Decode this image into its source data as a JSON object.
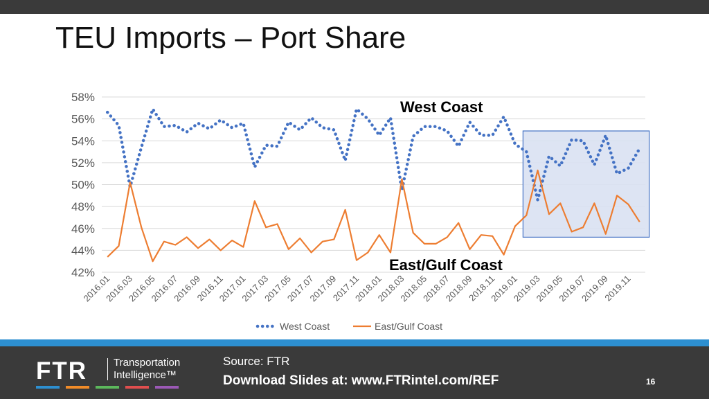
{
  "slide": {
    "title": "TEU Imports – Port Share"
  },
  "chart_data": {
    "type": "line",
    "categories": [
      "2016.01",
      "2016.02",
      "2016.03",
      "2016.04",
      "2016.05",
      "2016.06",
      "2016.07",
      "2016.08",
      "2016.09",
      "2016.10",
      "2016.11",
      "2016.12",
      "2017.01",
      "2017.02",
      "2017.03",
      "2017.04",
      "2017.05",
      "2017.06",
      "2017.07",
      "2017.08",
      "2017.09",
      "2017.10",
      "2017.11",
      "2017.12",
      "2018.01",
      "2018.02",
      "2018.03",
      "2018.04",
      "2018.05",
      "2018.06",
      "2018.07",
      "2018.08",
      "2018.09",
      "2018.10",
      "2018.11",
      "2018.12",
      "2019.01",
      "2019.02",
      "2019.03",
      "2019.04",
      "2019.05",
      "2019.06",
      "2019.07",
      "2019.08",
      "2019.09",
      "2019.10",
      "2019.11",
      "2019.12"
    ],
    "x_tick_labels": [
      "2016.01",
      "2016.03",
      "2016.05",
      "2016.07",
      "2016.09",
      "2016.11",
      "2017.01",
      "2017.03",
      "2017.05",
      "2017.07",
      "2017.09",
      "2017.11",
      "2018.01",
      "2018.03",
      "2018.05",
      "2018.07",
      "2018.09",
      "2018.11",
      "2019.01",
      "2019.03",
      "2019.05",
      "2019.07",
      "2019.09",
      "2019.11"
    ],
    "y_ticks": [
      42,
      44,
      46,
      48,
      50,
      52,
      54,
      56,
      58
    ],
    "y_tick_labels": [
      "42%",
      "44%",
      "46%",
      "48%",
      "50%",
      "52%",
      "54%",
      "56%",
      "58%"
    ],
    "ylim": [
      42,
      58
    ],
    "grid": true,
    "series": [
      {
        "name": "West Coast",
        "color": "#4472C4",
        "style": "dotted",
        "values": [
          56.6,
          55.4,
          49.8,
          53.4,
          56.9,
          55.3,
          55.4,
          54.8,
          55.6,
          55.1,
          55.9,
          55.2,
          55.6,
          51.6,
          53.6,
          53.5,
          55.7,
          55.0,
          56.1,
          55.2,
          55.0,
          52.2,
          56.9,
          56.0,
          54.5,
          56.1,
          49.5,
          54.4,
          55.3,
          55.3,
          54.9,
          53.5,
          55.7,
          54.5,
          54.5,
          56.2,
          53.7,
          53.0,
          48.6,
          52.6,
          51.7,
          54.1,
          54.0,
          51.8,
          54.5,
          51.0,
          51.5,
          53.3
        ]
      },
      {
        "name": "East/Gulf Coast",
        "color": "#ED7D31",
        "style": "solid",
        "values": [
          43.4,
          44.4,
          50.2,
          46.1,
          43.0,
          44.8,
          44.5,
          45.2,
          44.2,
          45.0,
          44.0,
          44.9,
          44.3,
          48.5,
          46.1,
          46.4,
          44.1,
          45.1,
          43.8,
          44.8,
          45.0,
          47.7,
          43.1,
          43.8,
          45.4,
          43.8,
          50.5,
          45.6,
          44.6,
          44.6,
          45.2,
          46.5,
          44.1,
          45.4,
          45.3,
          43.6,
          46.2,
          47.2,
          51.3,
          47.3,
          48.3,
          45.7,
          46.1,
          48.3,
          45.5,
          49.0,
          48.2,
          46.6
        ]
      }
    ],
    "annotations": [
      {
        "text": "West Coast"
      },
      {
        "text": "East/Gulf Coast"
      }
    ],
    "highlight": {
      "from": "2019.02",
      "to": "2019.12",
      "fill": "#d9e1f2",
      "stroke": "#4472C4"
    },
    "legend": {
      "position": "bottom",
      "entries": [
        "West Coast",
        "East/Gulf Coast"
      ]
    }
  },
  "footer": {
    "logo_mark": "FTR",
    "logo_tagline_1": "Transportation",
    "logo_tagline_2": "Intelligence™",
    "logo_colors": [
      "#2d8fd0",
      "#f28c28",
      "#5cb85c",
      "#e04e4e",
      "#9b59b6"
    ],
    "source": "Source: FTR",
    "download": "Download Slides at: www.FTRintel.com/REF",
    "page_number": "16"
  }
}
